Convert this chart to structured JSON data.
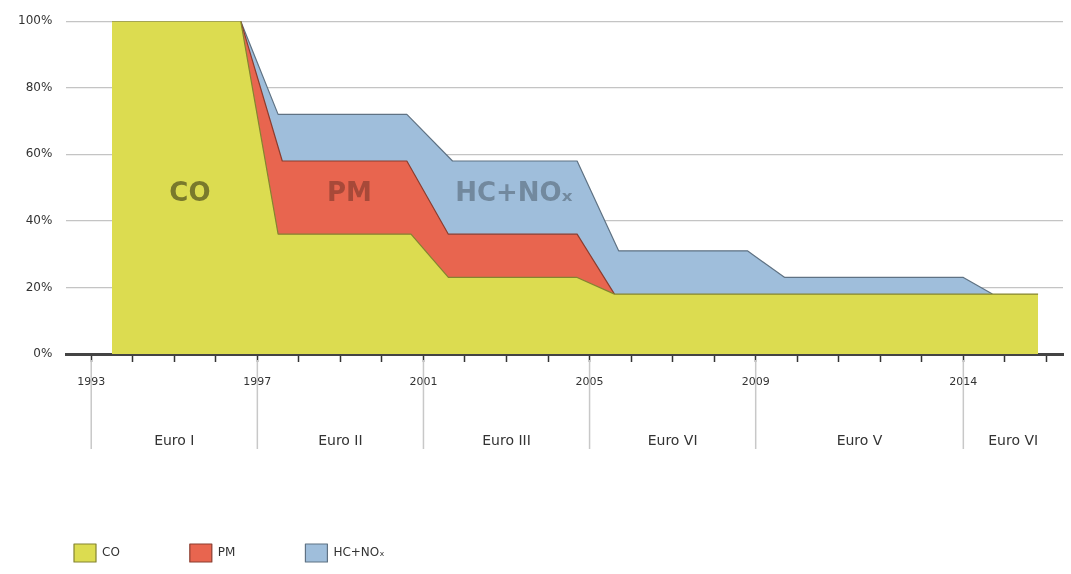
{
  "chart_data": {
    "type": "area",
    "series": [
      {
        "name": "CO",
        "color": "#dcdc50",
        "x": [
          1993.5,
          1996.6,
          1997.5,
          2000.7,
          2001.6,
          2004.7,
          2005.6,
          2015.8
        ],
        "values": [
          100,
          100,
          36,
          36,
          23,
          23,
          18,
          18
        ]
      },
      {
        "name": "PM",
        "color": "#e8654f",
        "x": [
          1996.6,
          1997.6,
          2000.6,
          2001.6,
          2004.7,
          2005.6
        ],
        "values": [
          100,
          58,
          58,
          36,
          36,
          18
        ]
      },
      {
        "name": "HC+NOₓ",
        "color": "#9fbedb",
        "x": [
          1996.6,
          1997.5,
          2000.6,
          2001.7,
          2004.7,
          2005.7,
          2008.8,
          2009.7,
          2014.0,
          2014.7
        ],
        "values": [
          100,
          72,
          72,
          58,
          58,
          31,
          31,
          23,
          23,
          18
        ]
      }
    ],
    "xlim": [
      1992.4,
      2016.4
    ],
    "xticks": [
      1993,
      {
        "value": 1994,
        "label": null
      },
      {
        "value": 1995,
        "label": null
      },
      {
        "value": 1996,
        "label": null
      },
      1997,
      {
        "value": 1998,
        "label": null
      },
      {
        "value": 1999,
        "label": null
      },
      {
        "value": 2000,
        "label": null
      },
      2001,
      {
        "value": 2002,
        "label": null
      },
      {
        "value": 2003,
        "label": null
      },
      {
        "value": 2004,
        "label": null
      },
      2005,
      {
        "value": 2006,
        "label": null
      },
      {
        "value": 2007,
        "label": null
      },
      {
        "value": 2008,
        "label": null
      },
      2009,
      {
        "value": 2010,
        "label": null
      },
      {
        "value": 2011,
        "label": null
      },
      {
        "value": 2012,
        "label": null
      },
      {
        "value": 2013,
        "label": null
      },
      2014,
      {
        "value": 2015,
        "label": null
      },
      {
        "value": 2016,
        "label": null
      }
    ],
    "ylim": [
      0,
      100
    ],
    "yticks": [
      {
        "value": 0,
        "label": "0%"
      },
      {
        "value": 20,
        "label": "20%"
      },
      {
        "value": 40,
        "label": "40%"
      },
      {
        "value": 60,
        "label": "60%"
      },
      {
        "value": 80,
        "label": "80%"
      },
      {
        "value": 100,
        "label": "100%"
      }
    ],
    "annotations": [
      "Euro I",
      "Euro II",
      "Euro III",
      "Euro VI",
      "Euro V",
      "Euro VI"
    ],
    "grid": "y",
    "legend": "bottom left"
  }
}
